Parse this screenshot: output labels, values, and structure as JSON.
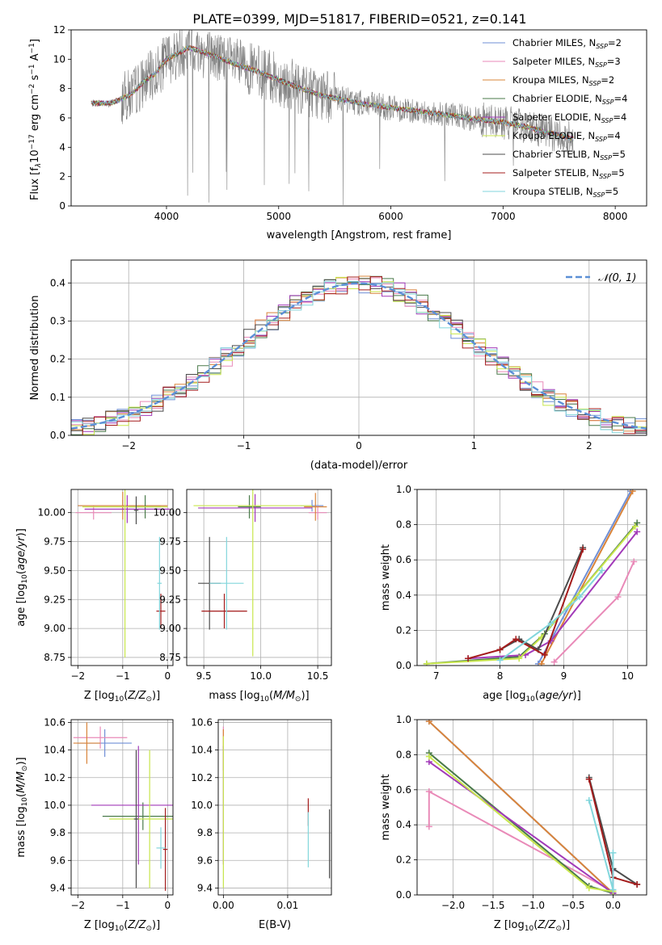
{
  "figure": {
    "title": "PLATE=0399, MJD=51817, FIBERID=0521, z=0.141"
  },
  "colors": {
    "Chabrier MILES": "#6f8fd6",
    "Salpeter MILES": "#e98ab8",
    "Kroupa MILES": "#d9843a",
    "Chabrier ELODIE": "#4a7a4a",
    "Salpeter ELODIE": "#a23ab9",
    "Kroupa ELODIE": "#c8e64c",
    "Chabrier STELIB": "#4c4c4c",
    "Salpeter STELIB": "#a41c1c",
    "Kroupa STELIB": "#82d6dc",
    "data": "#808080",
    "gaussian": "#5b8fd6",
    "grid": "#b0b0b0"
  },
  "chart_data": [
    {
      "type": "line",
      "id": "spectrum",
      "xlabel": "wavelength [Angstrom, rest frame]",
      "ylabel": "Flux [f",
      "ylabel_full": "Flux [fλ10⁻¹⁷ erg cm⁻² s⁻¹ A⁻¹]",
      "xlim": [
        3150,
        8280
      ],
      "ylim": [
        0,
        12
      ],
      "xticks": [
        4000,
        5000,
        6000,
        7000,
        8000
      ],
      "yticks": [
        0,
        2,
        4,
        6,
        8,
        10,
        12
      ],
      "grid": false,
      "legend_position": "top-right",
      "legend": [
        {
          "name": "Chabrier MILES",
          "label": "Chabrier MILES, N",
          "sub": "SSP",
          "n": "=2"
        },
        {
          "name": "Salpeter MILES",
          "label": "Salpeter MILES, N",
          "sub": "SSP",
          "n": "=3"
        },
        {
          "name": "Kroupa MILES",
          "label": "Kroupa MILES, N",
          "sub": "SSP",
          "n": "=2"
        },
        {
          "name": "Chabrier ELODIE",
          "label": "Chabrier ELODIE, N",
          "sub": "SSP",
          "n": "=4"
        },
        {
          "name": "Salpeter ELODIE",
          "label": "Salpeter ELODIE, N",
          "sub": "SSP",
          "n": "=4"
        },
        {
          "name": "Kroupa ELODIE",
          "label": "Kroupa ELODIE, N",
          "sub": "SSP",
          "n": "=4"
        },
        {
          "name": "Chabrier STELIB",
          "label": "Chabrier STELIB, N",
          "sub": "SSP",
          "n": "=5"
        },
        {
          "name": "Salpeter STELIB",
          "label": "Salpeter STELIB, N",
          "sub": "SSP",
          "n": "=5"
        },
        {
          "name": "Kroupa STELIB",
          "label": "Kroupa STELIB, N",
          "sub": "SSP",
          "n": "=5"
        }
      ],
      "data_x_range": [
        3330,
        7630
      ],
      "model_x_range": [
        3330,
        7630
      ],
      "continuum": [
        [
          3330,
          7.0
        ],
        [
          3500,
          7.0
        ],
        [
          3600,
          7.3
        ],
        [
          3700,
          7.7
        ],
        [
          3800,
          8.5
        ],
        [
          3900,
          9.0
        ],
        [
          4000,
          10.0
        ],
        [
          4200,
          10.8
        ],
        [
          4400,
          10.3
        ],
        [
          4600,
          9.7
        ],
        [
          4800,
          9.2
        ],
        [
          5000,
          8.6
        ],
        [
          5200,
          8.0
        ],
        [
          5400,
          7.5
        ],
        [
          5600,
          7.2
        ],
        [
          5800,
          6.9
        ],
        [
          6000,
          6.7
        ],
        [
          6200,
          6.5
        ],
        [
          6400,
          6.3
        ],
        [
          6600,
          6.1
        ],
        [
          6800,
          5.9
        ],
        [
          7000,
          5.7
        ],
        [
          7200,
          5.4
        ],
        [
          7400,
          5.0
        ],
        [
          7630,
          4.6
        ]
      ]
    },
    {
      "type": "step",
      "id": "residuals",
      "xlabel": "(data-model)/error",
      "ylabel": "Normed distribution",
      "xlim": [
        -2.5,
        2.5
      ],
      "ylim": [
        0,
        0.46
      ],
      "xticks": [
        -2,
        -1,
        0,
        1,
        2
      ],
      "yticks": [
        0.0,
        0.1,
        0.2,
        0.3,
        0.4
      ],
      "grid": true,
      "legend_position": "top-right",
      "legend_label": "𝒩(0, 1)",
      "bin_width": 0.1
    },
    {
      "type": "scatter",
      "id": "age-vs-Z",
      "xlabel": "Z [log",
      "xlabel_full": "Z [log10(Z/Z⊙)]",
      "ylabel": "age  [log",
      "ylabel_full": "age  [log10(age/yr)]",
      "xlim": [
        -2.15,
        0.12
      ],
      "ylim": [
        8.68,
        10.2
      ],
      "xticks": [
        -2,
        -1,
        0
      ],
      "yticks": [
        8.75,
        9.0,
        9.25,
        9.5,
        9.75,
        10.0
      ],
      "grid": true,
      "points": [
        {
          "model": "Chabrier MILES",
          "x": -1.0,
          "xerr": 1.0,
          "y": 10.06,
          "yerr": 0.05
        },
        {
          "model": "Salpeter MILES",
          "x": -1.65,
          "xerr": 0.4,
          "y": 10.0,
          "yerr": 0.06
        },
        {
          "model": "Kroupa MILES",
          "x": -1.0,
          "xerr": 1.0,
          "y": 10.06,
          "yerr": 0.12
        },
        {
          "model": "Chabrier ELODIE",
          "x": -0.5,
          "xerr": 0.35,
          "y": 10.05,
          "yerr": 0.1
        },
        {
          "model": "Salpeter ELODIE",
          "x": -0.9,
          "xerr": 0.95,
          "y": 10.03,
          "yerr": 0.12
        },
        {
          "model": "Kroupa ELODIE",
          "x": -0.95,
          "xerr": 0.95,
          "y": 10.05,
          "yerr": 1.3
        },
        {
          "model": "Chabrier STELIB",
          "x": -0.7,
          "xerr": 0.05,
          "y": 10.02,
          "yerr": 0.12
        },
        {
          "model": "Salpeter STELIB",
          "x": -0.15,
          "xerr": 0.1,
          "y": 9.15,
          "yerr": 0.15
        },
        {
          "model": "Kroupa STELIB",
          "x": -0.18,
          "xerr": 0.05,
          "y": 9.39,
          "yerr": 0.4
        }
      ]
    },
    {
      "type": "scatter",
      "id": "age-vs-mass",
      "xlabel": "mass [log",
      "xlabel_full": "mass [log10(M/M⊙)]",
      "ylabel": "",
      "xlim": [
        9.35,
        10.62
      ],
      "ylim": [
        8.68,
        10.2
      ],
      "xticks": [
        9.5,
        10.0,
        10.5
      ],
      "yticks": [
        8.75,
        9.0,
        9.25,
        9.5,
        9.75,
        10.0
      ],
      "grid": true,
      "points": [
        {
          "model": "Chabrier MILES",
          "x": 10.45,
          "xerr": 0.1,
          "y": 10.06,
          "yerr": 0.05
        },
        {
          "model": "Salpeter MILES",
          "x": 10.5,
          "xerr": 0.08,
          "y": 10.0,
          "yerr": 0.06
        },
        {
          "model": "Kroupa MILES",
          "x": 10.48,
          "xerr": 0.1,
          "y": 10.05,
          "yerr": 0.12
        },
        {
          "model": "Chabrier ELODIE",
          "x": 9.9,
          "xerr": 0.1,
          "y": 10.05,
          "yerr": 0.1
        },
        {
          "model": "Salpeter ELODIE",
          "x": 9.95,
          "xerr": 0.5,
          "y": 10.04,
          "yerr": 0.12
        },
        {
          "model": "Kroupa ELODIE",
          "x": 9.93,
          "xerr": 0.52,
          "y": 10.06,
          "yerr": 1.3
        },
        {
          "model": "Chabrier STELIB",
          "x": 9.55,
          "xerr": 0.1,
          "y": 9.39,
          "yerr": 0.4
        },
        {
          "model": "Salpeter STELIB",
          "x": 9.68,
          "xerr": 0.2,
          "y": 9.15,
          "yerr": 0.15
        },
        {
          "model": "Kroupa STELIB",
          "x": 9.7,
          "xerr": 0.15,
          "y": 9.39,
          "yerr": 0.4
        }
      ]
    },
    {
      "type": "line",
      "id": "massweight-vs-age",
      "xlabel": "age  [log",
      "xlabel_full": "age  [log10(age/yr)]",
      "ylabel": "mass weight",
      "xlim": [
        6.7,
        10.3
      ],
      "ylim": [
        0,
        1.0
      ],
      "xticks": [
        7,
        8,
        9,
        10
      ],
      "yticks": [
        0.0,
        0.2,
        0.4,
        0.6,
        0.8,
        1.0
      ],
      "grid": true,
      "series": [
        {
          "name": "Chabrier MILES",
          "x": [
            8.6,
            10.05
          ],
          "y": [
            0.01,
            0.99
          ]
        },
        {
          "name": "Salpeter MILES",
          "x": [
            8.85,
            9.85,
            10.1
          ],
          "y": [
            0.02,
            0.39,
            0.59
          ]
        },
        {
          "name": "Kroupa MILES",
          "x": [
            8.65,
            10.08
          ],
          "y": [
            0.01,
            0.99
          ]
        },
        {
          "name": "Chabrier ELODIE",
          "x": [
            6.85,
            8.3,
            8.7,
            10.15
          ],
          "y": [
            0.01,
            0.05,
            0.18,
            0.81
          ]
        },
        {
          "name": "Salpeter ELODIE",
          "x": [
            7.5,
            8.4,
            8.8,
            10.15
          ],
          "y": [
            0.04,
            0.06,
            0.14,
            0.76
          ]
        },
        {
          "name": "Kroupa ELODIE",
          "x": [
            6.85,
            8.3,
            8.65,
            10.12
          ],
          "y": [
            0.01,
            0.04,
            0.16,
            0.79
          ]
        },
        {
          "name": "Chabrier STELIB",
          "x": [
            8.0,
            8.3,
            8.6,
            9.3
          ],
          "y": [
            0.09,
            0.15,
            0.09,
            0.67
          ]
        },
        {
          "name": "Salpeter STELIB",
          "x": [
            7.5,
            8.0,
            8.25,
            8.7,
            9.3
          ],
          "y": [
            0.04,
            0.09,
            0.15,
            0.06,
            0.66
          ]
        },
        {
          "name": "Kroupa STELIB",
          "x": [
            8.0,
            8.8,
            9.25,
            9.6
          ],
          "y": [
            0.03,
            0.24,
            0.39,
            0.54
          ]
        }
      ]
    },
    {
      "type": "scatter",
      "id": "mass-vs-Z",
      "xlabel": "Z [log",
      "xlabel_full": "Z [log10(Z/Z⊙)]",
      "ylabel": "mass [log",
      "ylabel_full": "mass [log10(M/M⊙)]",
      "xlim": [
        -2.15,
        0.12
      ],
      "ylim": [
        9.35,
        10.62
      ],
      "xticks": [
        -2,
        -1,
        0
      ],
      "yticks": [
        9.4,
        9.6,
        9.8,
        10.0,
        10.2,
        10.4,
        10.6
      ],
      "grid": true,
      "points": [
        {
          "model": "Chabrier MILES",
          "x": -1.4,
          "xerr": 0.6,
          "y": 10.45,
          "yerr": 0.1
        },
        {
          "model": "Salpeter MILES",
          "x": -1.5,
          "xerr": 0.6,
          "y": 10.49,
          "yerr": 0.08
        },
        {
          "model": "Kroupa MILES",
          "x": -1.8,
          "xerr": 0.3,
          "y": 10.45,
          "yerr": 0.15
        },
        {
          "model": "Chabrier ELODIE",
          "x": -0.55,
          "xerr": 0.9,
          "y": 9.92,
          "yerr": 0.1
        },
        {
          "model": "Salpeter ELODIE",
          "x": -0.65,
          "xerr": 1.05,
          "y": 10.0,
          "yerr": 0.43
        },
        {
          "model": "Kroupa ELODIE",
          "x": -0.4,
          "xerr": 0.9,
          "y": 9.9,
          "yerr": 0.5
        },
        {
          "model": "Chabrier STELIB",
          "x": -0.7,
          "xerr": 0.05,
          "y": 9.9,
          "yerr": 0.5
        },
        {
          "model": "Salpeter STELIB",
          "x": -0.05,
          "xerr": 0.05,
          "y": 9.68,
          "yerr": 0.3
        },
        {
          "model": "Kroupa STELIB",
          "x": -0.15,
          "xerr": 0.1,
          "y": 9.69,
          "yerr": 0.15
        }
      ]
    },
    {
      "type": "scatter",
      "id": "mass-vs-ebv",
      "xlabel": "E(B-V)",
      "ylabel": "",
      "xlim": [
        -0.0008,
        0.0168
      ],
      "ylim": [
        9.35,
        10.62
      ],
      "xticks": [
        0.0,
        0.01
      ],
      "xticklabels": [
        "0.00",
        "0.01"
      ],
      "yticks": [
        9.4,
        9.6,
        9.8,
        10.0,
        10.2,
        10.4,
        10.6
      ],
      "grid": true,
      "points": [
        {
          "model": "Salpeter MILES",
          "x": 0.0,
          "y": 10.49,
          "yerr": 0.08
        },
        {
          "model": "Kroupa MILES",
          "x": 0.0,
          "y": 10.4,
          "yerr": 0.15
        },
        {
          "model": "Salpeter ELODIE",
          "x": 0.0,
          "y": 10.0,
          "yerr": 0.43
        },
        {
          "model": "Kroupa ELODIE",
          "x": 0.0,
          "y": 9.95,
          "yerr": 0.55
        },
        {
          "model": "Salpeter STELIB",
          "x": 0.0132,
          "y": 9.95,
          "yerr": 0.1
        },
        {
          "model": "Kroupa STELIB",
          "x": 0.0132,
          "y": 9.75,
          "yerr": 0.2
        },
        {
          "model": "Chabrier STELIB",
          "x": 0.0165,
          "y": 9.72,
          "yerr": 0.25
        }
      ]
    },
    {
      "type": "line",
      "id": "massweight-vs-Z",
      "xlabel": "Z [log",
      "xlabel_full": "Z [log10(Z/Z⊙)]",
      "ylabel": "mass weight",
      "xlim": [
        -2.45,
        0.42
      ],
      "ylim": [
        0,
        1.0
      ],
      "xticks": [
        -2.0,
        -1.5,
        -1.0,
        -0.5,
        0.0
      ],
      "xticklabels": [
        "−2.0",
        "−1.5",
        "−1.0",
        "−0.5",
        "0.0"
      ],
      "yticks": [
        0.0,
        0.2,
        0.4,
        0.6,
        0.8,
        1.0
      ],
      "grid": true,
      "series": [
        {
          "name": "Chabrier MILES",
          "x": [
            -2.3,
            0.0
          ],
          "y": [
            0.99,
            0.01
          ]
        },
        {
          "name": "Salpeter MILES",
          "x": [
            -2.3,
            -2.3,
            0.0
          ],
          "y": [
            0.39,
            0.59,
            0.02
          ]
        },
        {
          "name": "Kroupa MILES",
          "x": [
            -2.3,
            0.0
          ],
          "y": [
            0.99,
            0.01
          ]
        },
        {
          "name": "Chabrier ELODIE",
          "x": [
            -2.3,
            -0.3,
            0.0
          ],
          "y": [
            0.81,
            0.05,
            0.01
          ]
        },
        {
          "name": "Salpeter ELODIE",
          "x": [
            -2.3,
            0.0,
            0.0
          ],
          "y": [
            0.76,
            0.01,
            0.14
          ]
        },
        {
          "name": "Kroupa ELODIE",
          "x": [
            -2.3,
            -0.3,
            0.0
          ],
          "y": [
            0.79,
            0.04,
            0.02
          ]
        },
        {
          "name": "Chabrier STELIB",
          "x": [
            -0.3,
            0.0,
            0.3
          ],
          "y": [
            0.67,
            0.15,
            0.06
          ]
        },
        {
          "name": "Salpeter STELIB",
          "x": [
            -0.3,
            0.0,
            0.3
          ],
          "y": [
            0.66,
            0.1,
            0.06
          ]
        },
        {
          "name": "Kroupa STELIB",
          "x": [
            -0.3,
            0.0,
            0.0
          ],
          "y": [
            0.54,
            0.03,
            0.24
          ]
        }
      ]
    }
  ]
}
